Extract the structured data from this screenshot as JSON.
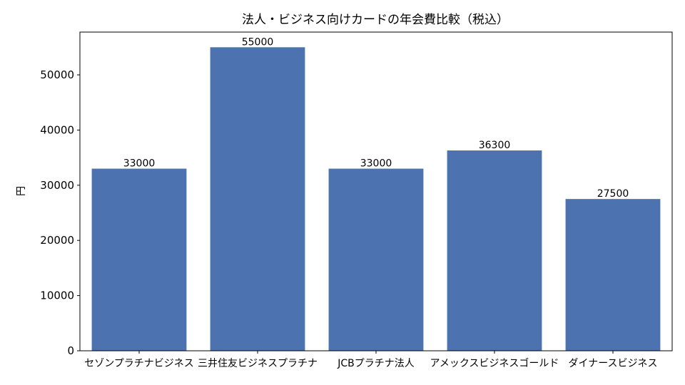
{
  "chart_data": {
    "type": "bar",
    "title": "法人・ビジネス向けカードの年会費比較（税込）",
    "xlabel": "",
    "ylabel": "円",
    "categories": [
      "セゾンプラチナビジネス",
      "三井住友ビジネスプラチナ",
      "JCBプラチナ法人",
      "アメックスビジネスゴールド",
      "ダイナースビジネス"
    ],
    "values": [
      33000,
      55000,
      33000,
      36300,
      27500
    ],
    "data_labels": [
      "33000",
      "55000",
      "33000",
      "36300",
      "27500"
    ],
    "yticks": [
      0,
      10000,
      20000,
      30000,
      40000,
      50000
    ],
    "ytick_labels": [
      "0",
      "10000",
      "20000",
      "30000",
      "40000",
      "50000"
    ],
    "ylim": [
      0,
      57750
    ],
    "bar_color": "#4c72b0",
    "grid": false,
    "legend": "none"
  }
}
